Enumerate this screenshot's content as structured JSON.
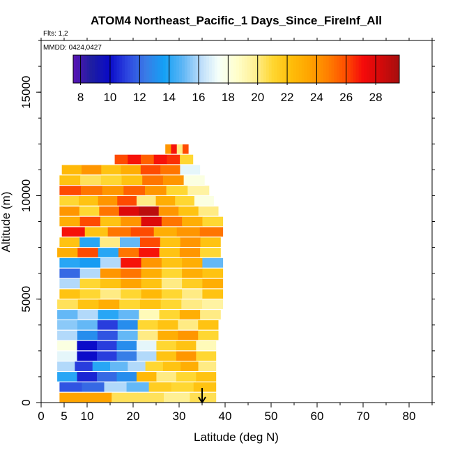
{
  "chart_data": {
    "type": "heatmap",
    "title": "ATOM4 Northeast_Pacific_1 Days_Since_FireInf_All",
    "flights_label": "Flts: 1,2",
    "mmdd_label": "MMDD: 0424,0427",
    "xlabel": "Latitude (deg N)",
    "ylabel": "Altitude (m)",
    "xlim": [
      0,
      85
    ],
    "ylim": [
      0,
      17500
    ],
    "x_ticks": [
      0,
      5,
      10,
      20,
      30,
      40,
      50,
      60,
      70,
      80
    ],
    "y_ticks": [
      0,
      5000,
      10000,
      15000
    ],
    "colorbar": {
      "range": [
        7.5,
        29.6
      ],
      "ticks": [
        8,
        10,
        12,
        14,
        16,
        18,
        20,
        22,
        24,
        26,
        28
      ],
      "colors": [
        "#5a14b4",
        "#1e1ea0",
        "#0a0ac8",
        "#2d46e1",
        "#3a7be6",
        "#13a0f5",
        "#5ab4f5",
        "#b9dcfa",
        "#f5fffa",
        "#ffffcd",
        "#fff096",
        "#ffd732",
        "#ffbe0a",
        "#ffa500",
        "#ff8200",
        "#ff5000",
        "#f50a0a",
        "#d20a0a",
        "#a50f0f"
      ]
    },
    "marker": {
      "x": 35,
      "label": "arrow"
    },
    "rows": [
      {
        "alt": [
          0,
          500
        ],
        "xmin": 4,
        "xmax": 38,
        "values": [
          23.5,
          23.5,
          20.5,
          20.5,
          19.8,
          20.6
        ]
      },
      {
        "alt": [
          500,
          1000
        ],
        "xmin": 4,
        "xmax": 38,
        "values": [
          11.5,
          12,
          16,
          15,
          21.5,
          21,
          22
        ]
      },
      {
        "alt": [
          1000,
          1500
        ],
        "xmin": 3.5,
        "xmax": 38,
        "values": [
          14,
          10.5,
          12,
          13,
          22.5,
          20,
          21,
          22
        ]
      },
      {
        "alt": [
          1500,
          2000
        ],
        "xmin": 3.5,
        "xmax": 38,
        "values": [
          16,
          11,
          14,
          15,
          16,
          21,
          22,
          23,
          20
        ]
      },
      {
        "alt": [
          2000,
          2500
        ],
        "xmin": 3.5,
        "xmax": 38,
        "values": [
          17,
          10,
          11,
          12.5,
          16,
          22,
          24,
          21
        ]
      },
      {
        "alt": [
          2500,
          3000
        ],
        "xmin": 3.5,
        "xmax": 38,
        "values": [
          18,
          10,
          11,
          13,
          17,
          21,
          22,
          19
        ]
      },
      {
        "alt": [
          3000,
          3500
        ],
        "xmin": 3.5,
        "xmax": 38.5,
        "values": [
          16,
          13,
          11.5,
          15,
          20,
          23,
          24,
          21
        ]
      },
      {
        "alt": [
          3500,
          4000
        ],
        "xmin": 3.5,
        "xmax": 38.5,
        "values": [
          15.5,
          15,
          11,
          13,
          21,
          22,
          20,
          22
        ]
      },
      {
        "alt": [
          4000,
          4500
        ],
        "xmin": 3.5,
        "xmax": 39,
        "values": [
          15,
          16,
          14,
          15,
          19,
          21,
          23,
          20
        ]
      },
      {
        "alt": [
          4500,
          5000
        ],
        "xmin": 3.5,
        "xmax": 39.5,
        "values": [
          20.5,
          22,
          23,
          21,
          22,
          21,
          20,
          19.5
        ]
      },
      {
        "alt": [
          5000,
          5500
        ],
        "xmin": 4,
        "xmax": 39.5,
        "values": [
          22,
          21,
          20,
          21,
          22.5,
          21,
          20,
          22
        ]
      },
      {
        "alt": [
          5500,
          6000
        ],
        "xmin": 4,
        "xmax": 39.5,
        "values": [
          16,
          21,
          22,
          23.5,
          22,
          20,
          21.5,
          23
        ]
      },
      {
        "alt": [
          6000,
          6500
        ],
        "xmin": 4,
        "xmax": 39.5,
        "values": [
          12,
          16,
          24,
          25,
          23,
          21,
          23,
          22
        ]
      },
      {
        "alt": [
          6500,
          7000
        ],
        "xmin": 4,
        "xmax": 39.5,
        "values": [
          14,
          13.5,
          16,
          27,
          24,
          22,
          23,
          15
        ]
      },
      {
        "alt": [
          7000,
          7500
        ],
        "xmin": 3.5,
        "xmax": 39,
        "values": [
          23,
          26,
          14,
          25,
          27,
          22,
          24,
          21
        ]
      },
      {
        "alt": [
          7500,
          8000
        ],
        "xmin": 4,
        "xmax": 39,
        "values": [
          22,
          14,
          20,
          15,
          26,
          22,
          24,
          22
        ]
      },
      {
        "alt": [
          8000,
          8500
        ],
        "xmin": 4.5,
        "xmax": 39.5,
        "values": [
          27,
          22,
          25,
          26,
          23,
          24,
          25
        ]
      },
      {
        "alt": [
          8500,
          9000
        ],
        "xmin": 4,
        "xmax": 39.5,
        "values": [
          23,
          26,
          22,
          24,
          28,
          25,
          23,
          21
        ]
      },
      {
        "alt": [
          9000,
          9500
        ],
        "xmin": 4,
        "xmax": 38.5,
        "values": [
          24,
          21,
          25,
          28,
          29,
          24,
          22,
          20
        ]
      },
      {
        "alt": [
          9500,
          10000
        ],
        "xmin": 4,
        "xmax": 37.5,
        "values": [
          21,
          22,
          24,
          26,
          20,
          23,
          21,
          18
        ]
      },
      {
        "alt": [
          10000,
          10500
        ],
        "xmin": 4,
        "xmax": 36.5,
        "values": [
          26,
          25,
          24,
          25.5,
          24,
          21,
          19.5
        ]
      },
      {
        "alt": [
          10500,
          11000
        ],
        "xmin": 4,
        "xmax": 35.5,
        "values": [
          22,
          20.5,
          21,
          22,
          25,
          24,
          18
        ]
      },
      {
        "alt": [
          11000,
          11500
        ],
        "xmin": 4.5,
        "xmax": 34.5,
        "values": [
          22.5,
          24,
          22,
          23,
          26,
          25,
          17
        ]
      },
      {
        "alt": [
          11500,
          12000
        ],
        "xmin": 16,
        "xmax": 33,
        "values": [
          26,
          27,
          25.5,
          27,
          26.5,
          21
        ]
      },
      {
        "alt": [
          12000,
          12500
        ],
        "xmin": 27,
        "xmax": 32,
        "values": [
          24,
          27,
          20,
          26
        ]
      }
    ]
  }
}
